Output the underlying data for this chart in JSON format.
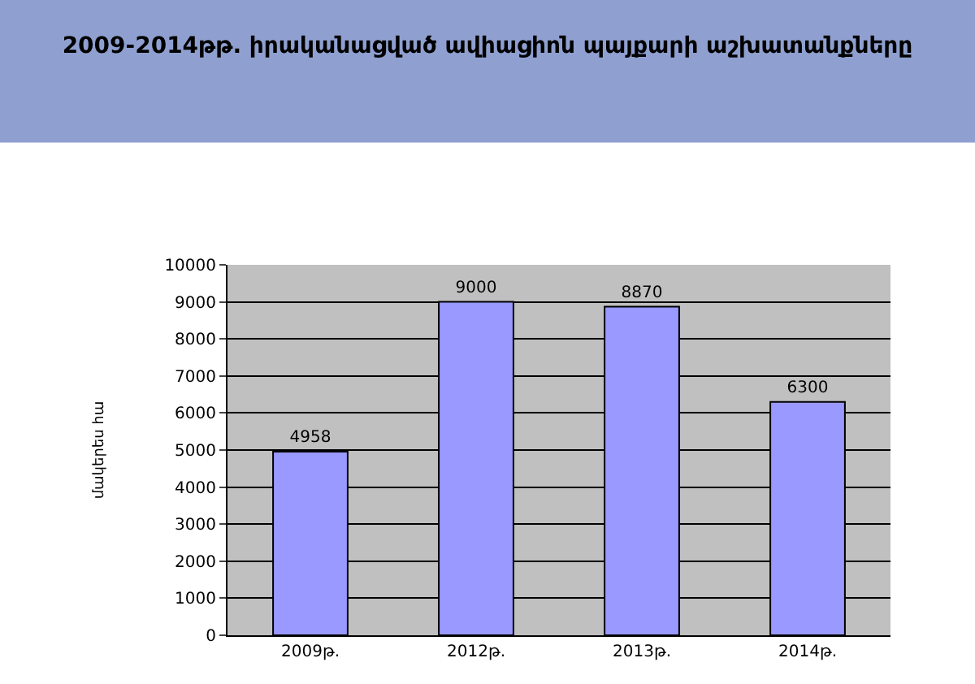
{
  "chart_data": {
    "type": "bar",
    "title": "2009-2014թթ. իրականացված ավիացիոն պայքարի աշխատանքները",
    "ylabel": "մակերես հա",
    "categories": [
      "2009թ.",
      "2012թ.",
      "2013թ.",
      "2014թ."
    ],
    "values": [
      4958,
      9000,
      8870,
      6300
    ],
    "color": "#9999ff",
    "ylim": [
      0,
      10000
    ],
    "yticks": [
      0,
      1000,
      2000,
      3000,
      4000,
      5000,
      6000,
      7000,
      8000,
      9000,
      10000
    ],
    "grid": "y",
    "data_labels": true
  }
}
